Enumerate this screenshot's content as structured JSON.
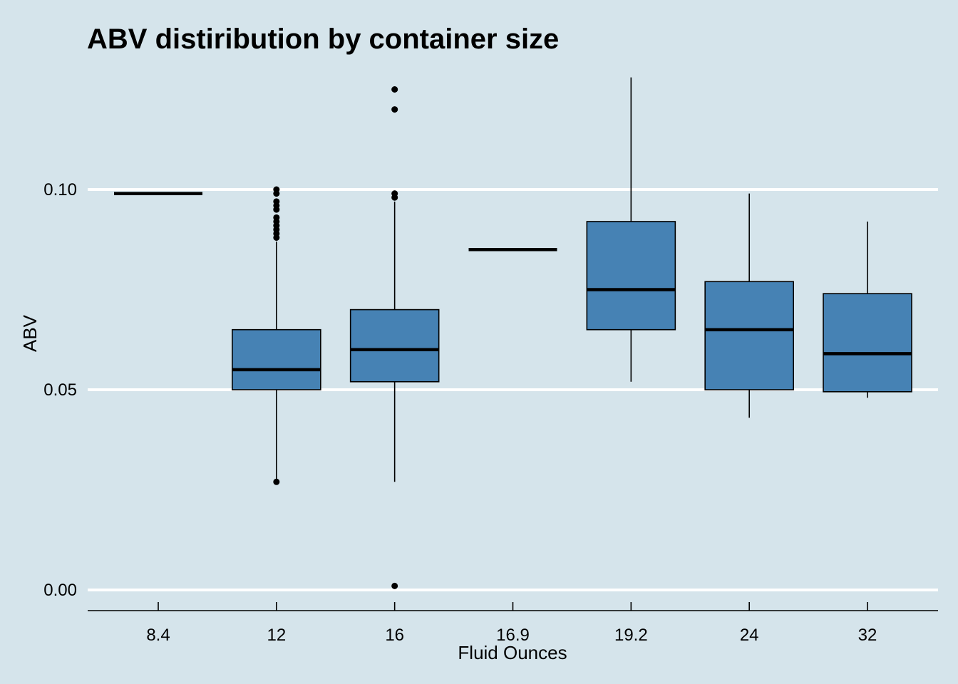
{
  "chart_data": {
    "type": "boxplot",
    "title": "ABV distiribution by container size",
    "xlabel": "Fluid Ounces",
    "ylabel": "ABV",
    "ylim": [
      -0.005,
      0.128
    ],
    "yticks": [
      0.0,
      0.05,
      0.1
    ],
    "ytick_labels": [
      "0.00",
      "0.05",
      "0.10"
    ],
    "grid": "horizontal major",
    "colors": {
      "box_fill": "#4682b4",
      "background": "#d5e4eb",
      "grid": "#ffffff"
    },
    "categories": [
      "8.4",
      "12",
      "16",
      "16.9",
      "19.2",
      "24",
      "32"
    ],
    "boxes": [
      {
        "category": "8.4",
        "min": 0.099,
        "q1": 0.099,
        "median": 0.099,
        "q3": 0.099,
        "max": 0.099,
        "outliers": []
      },
      {
        "category": "12",
        "min": 0.027,
        "q1": 0.05,
        "median": 0.055,
        "q3": 0.065,
        "max": 0.087,
        "outliers": [
          0.027,
          0.088,
          0.089,
          0.09,
          0.091,
          0.092,
          0.093,
          0.095,
          0.096,
          0.097,
          0.099,
          0.1
        ]
      },
      {
        "category": "16",
        "min": 0.027,
        "q1": 0.052,
        "median": 0.06,
        "q3": 0.07,
        "max": 0.097,
        "outliers": [
          0.001,
          0.098,
          0.099,
          0.12,
          0.125
        ]
      },
      {
        "category": "16.9",
        "min": 0.085,
        "q1": 0.085,
        "median": 0.085,
        "q3": 0.085,
        "max": 0.085,
        "outliers": []
      },
      {
        "category": "19.2",
        "min": 0.052,
        "q1": 0.065,
        "median": 0.075,
        "q3": 0.092,
        "max": 0.128,
        "outliers": []
      },
      {
        "category": "24",
        "min": 0.043,
        "q1": 0.05,
        "median": 0.065,
        "q3": 0.077,
        "max": 0.099,
        "outliers": []
      },
      {
        "category": "32",
        "min": 0.048,
        "q1": 0.0495,
        "median": 0.059,
        "q3": 0.074,
        "max": 0.092,
        "outliers": []
      }
    ]
  }
}
